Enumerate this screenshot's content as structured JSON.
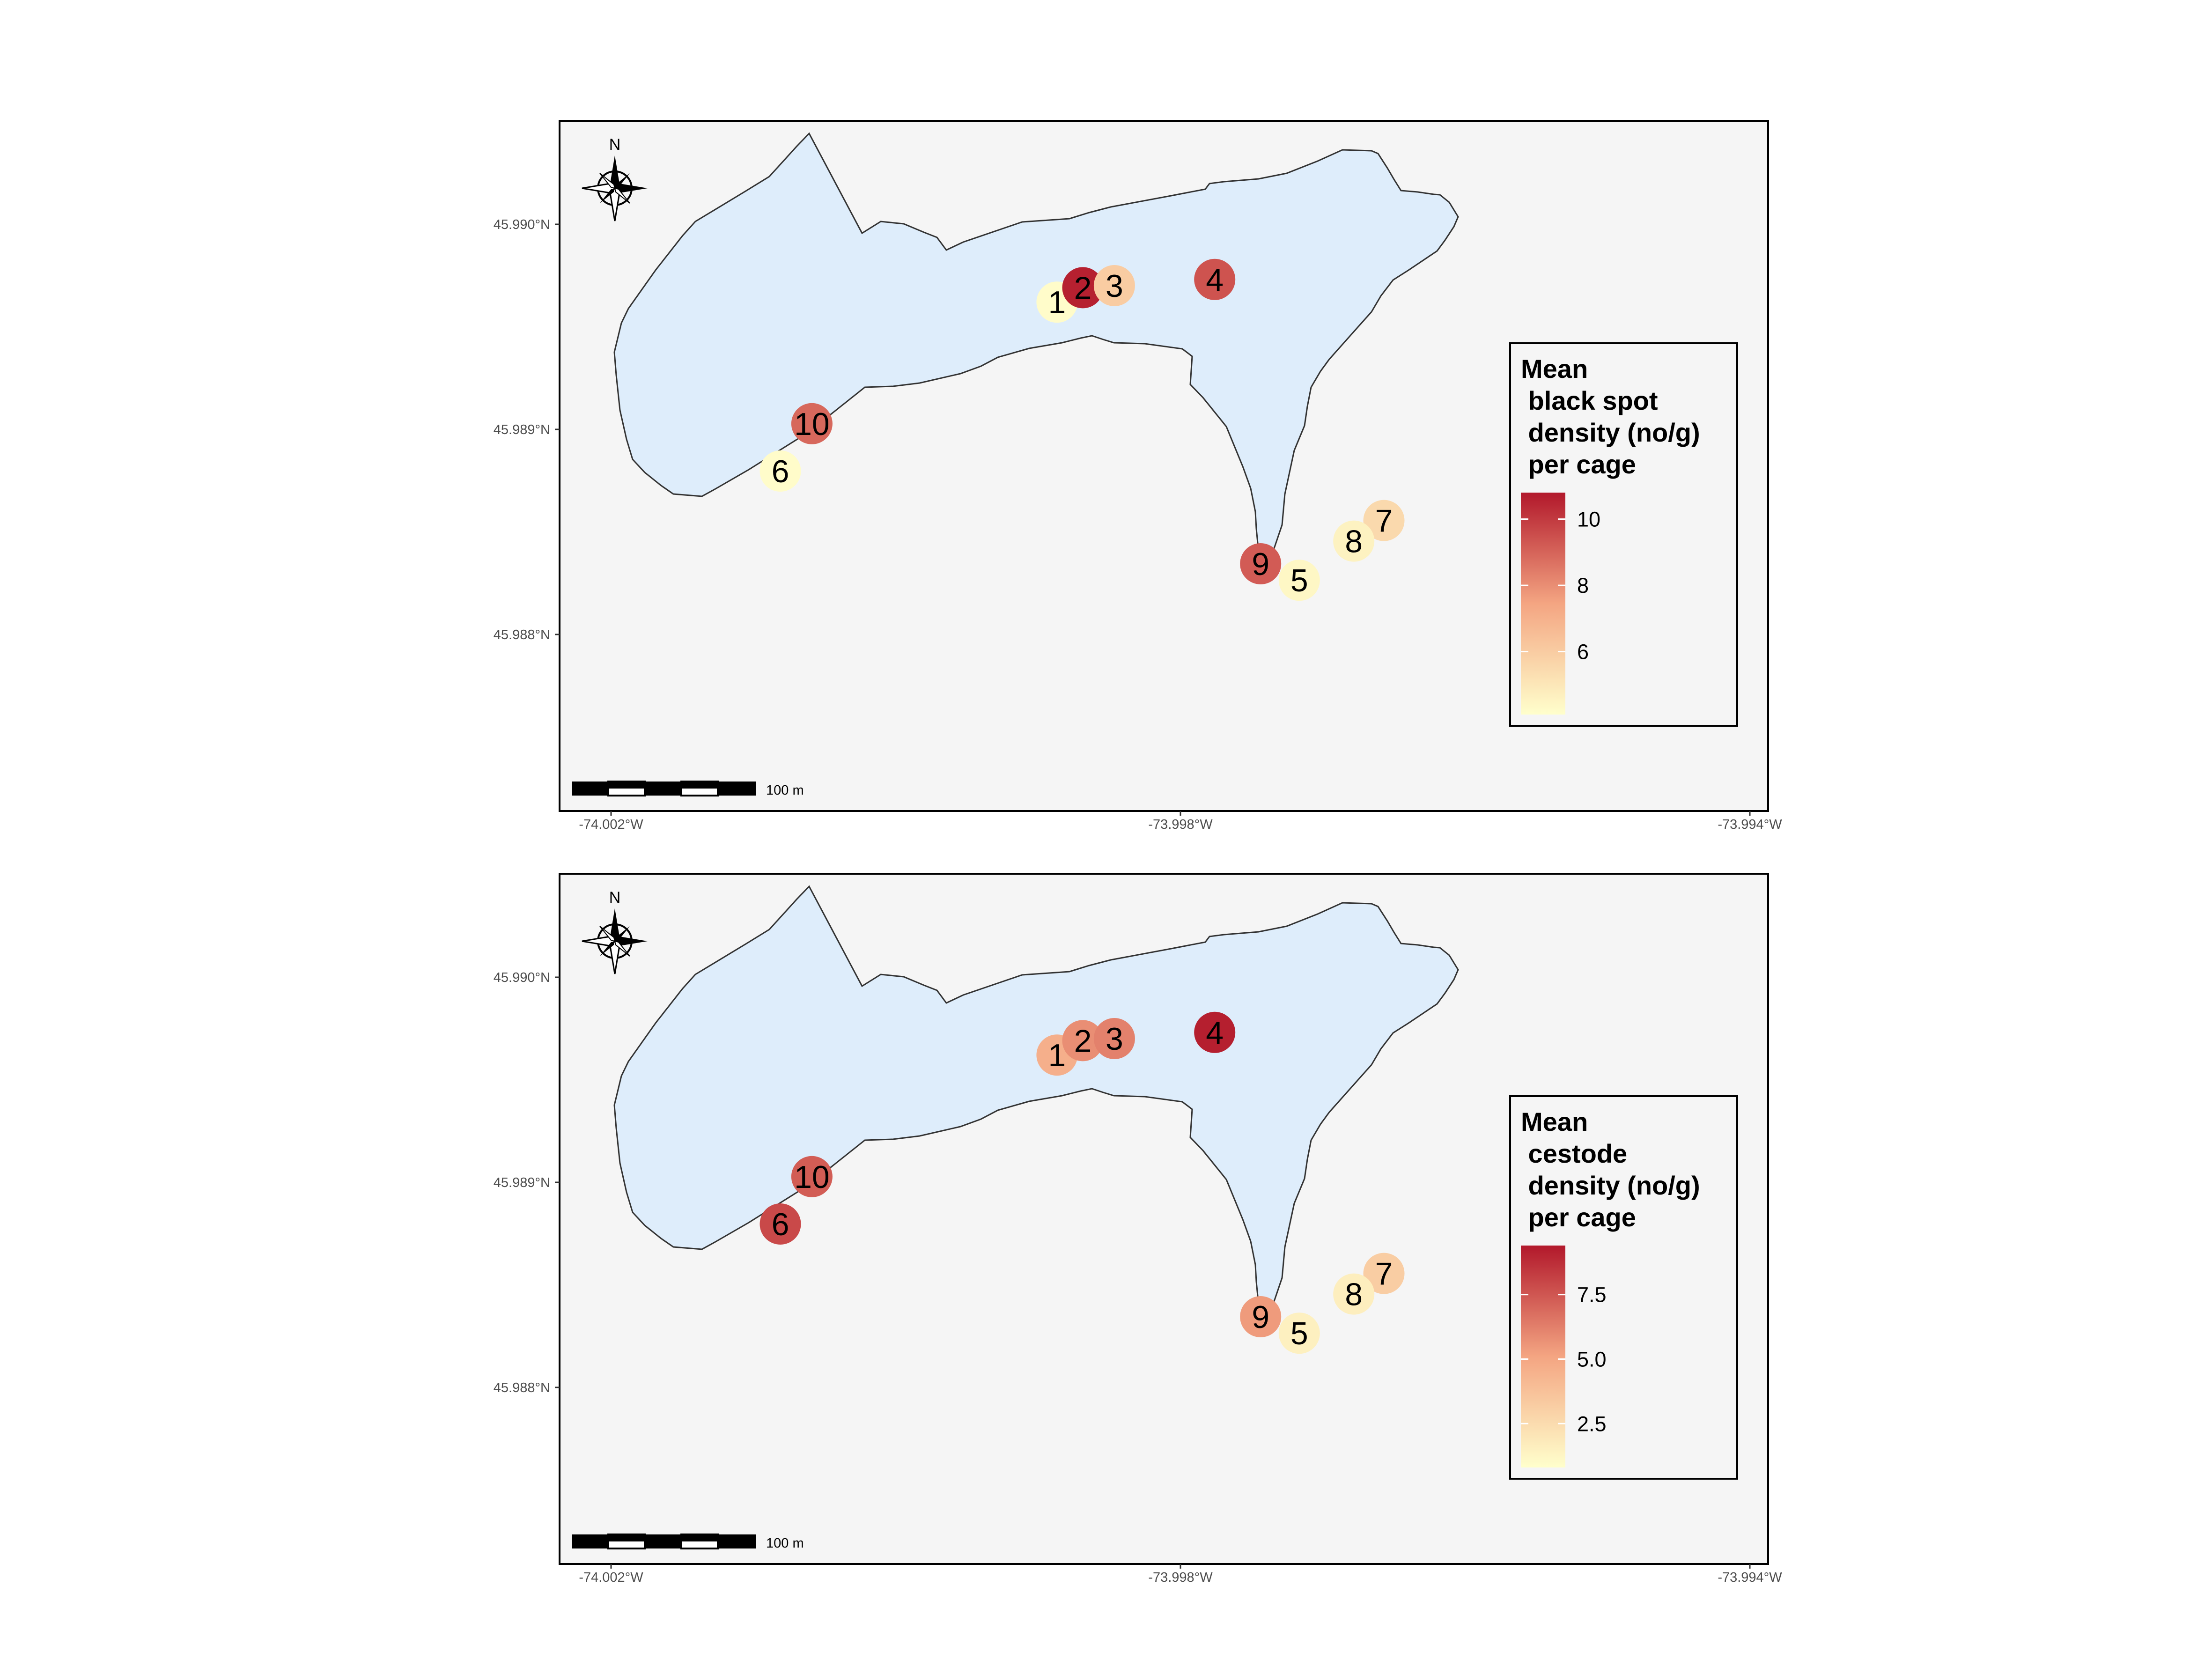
{
  "figure": {
    "panels": [
      {
        "legend": {
          "title_lines": [
            "Mean",
            " black spot",
            " density (no/g)",
            " per cage"
          ],
          "ticks": [
            "10",
            "8",
            "6"
          ],
          "tick_values": [
            10,
            8,
            6
          ],
          "range": [
            4.1,
            10.8
          ]
        },
        "sites": [
          {
            "label": "1",
            "lon": -73.9989,
            "lat": 45.98962,
            "value": 4.2
          },
          {
            "label": "2",
            "lon": -73.99872,
            "lat": 45.98969,
            "value": 10.6
          },
          {
            "label": "3",
            "lon": -73.9985,
            "lat": 45.9897,
            "value": 6.0
          },
          {
            "label": "4",
            "lon": -73.9978,
            "lat": 45.98973,
            "value": 9.4
          },
          {
            "label": "5",
            "lon": -73.99721,
            "lat": 45.98827,
            "value": 4.4
          },
          {
            "label": "6",
            "lon": -74.00083,
            "lat": 45.9888,
            "value": 4.2
          },
          {
            "label": "7",
            "lon": -73.99662,
            "lat": 45.98856,
            "value": 5.5
          },
          {
            "label": "8",
            "lon": -73.99683,
            "lat": 45.98846,
            "value": 4.6
          },
          {
            "label": "9",
            "lon": -73.99748,
            "lat": 45.98835,
            "value": 9.2
          },
          {
            "label": "10",
            "lon": -74.00061,
            "lat": 45.98903,
            "value": 8.9
          }
        ]
      },
      {
        "legend": {
          "title_lines": [
            "Mean",
            " cestode",
            " density (no/g)",
            " per cage"
          ],
          "ticks": [
            "7.5",
            "5.0",
            "2.5"
          ],
          "tick_values": [
            7.5,
            5.0,
            2.5
          ],
          "range": [
            0.8,
            9.4
          ]
        },
        "sites": [
          {
            "label": "1",
            "lon": -73.9989,
            "lat": 45.98962,
            "value": 4.6
          },
          {
            "label": "2",
            "lon": -73.99872,
            "lat": 45.98969,
            "value": 5.8
          },
          {
            "label": "3",
            "lon": -73.9985,
            "lat": 45.9897,
            "value": 6.2
          },
          {
            "label": "4",
            "lon": -73.9978,
            "lat": 45.98973,
            "value": 9.2
          },
          {
            "label": "5",
            "lon": -73.99721,
            "lat": 45.98827,
            "value": 1.5
          },
          {
            "label": "6",
            "lon": -74.00083,
            "lat": 45.9888,
            "value": 7.9
          },
          {
            "label": "7",
            "lon": -73.99662,
            "lat": 45.98856,
            "value": 3.2
          },
          {
            "label": "8",
            "lon": -73.99683,
            "lat": 45.98846,
            "value": 1.6
          },
          {
            "label": "9",
            "lon": -73.99748,
            "lat": 45.98835,
            "value": 5.4
          },
          {
            "label": "10",
            "lon": -74.00061,
            "lat": 45.98903,
            "value": 7.3
          }
        ]
      }
    ],
    "axes": {
      "x_ticks": [
        "-74.002°W",
        "-73.998°W",
        "-73.994°W"
      ],
      "x_tick_values": [
        -74.002,
        -73.998,
        -73.994
      ],
      "y_ticks": [
        "45.990°N",
        "45.989°N",
        "45.988°N"
      ],
      "y_tick_values": [
        45.99,
        45.989,
        45.988
      ],
      "xlim": [
        -74.00237,
        -73.99394
      ],
      "ylim": [
        45.98715,
        45.9905
      ]
    },
    "scale_bar_label": "100 m",
    "north_arrow_label": "N",
    "colors": {
      "panel_bg": "#f5f5f5",
      "lake_fill": "#deedfb",
      "lake_outline": "#333333",
      "ramp_low": "#ffffcc",
      "ramp_mid": "#f4a582",
      "ramp_high": "#b2182b"
    },
    "icons": [
      "compass-rose-icon"
    ]
  }
}
